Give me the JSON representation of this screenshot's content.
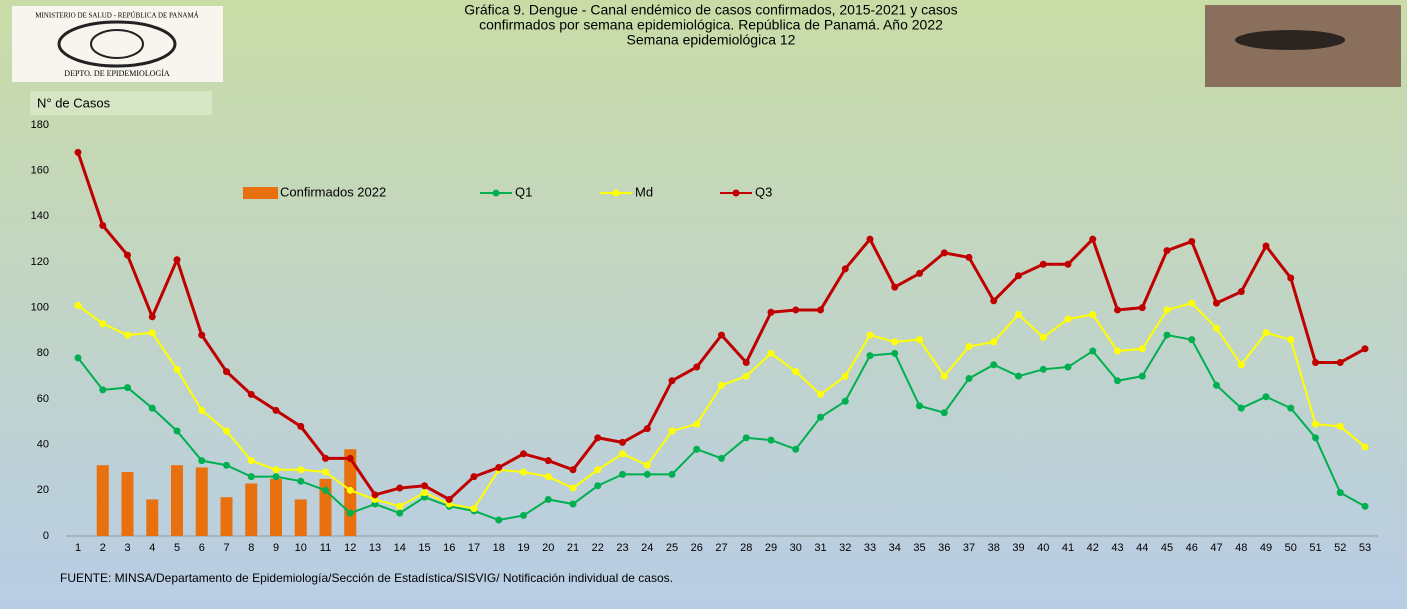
{
  "chart_data": {
    "type": "combo",
    "title_lines": [
      "Gráfica 9. Dengue - Canal endémico de casos confirmados, 2015-2021 y casos",
      "confirmados por semana epidemiológica. República de Panamá. Año 2022",
      "Semana epidemiológica 12"
    ],
    "logo_texts": [
      "MINISTERIO DE SALUD - REPÚBLICA DE PANAMÁ",
      "DEPTO. DE EPIDEMIOLOGÍA"
    ],
    "y_label": "N° de Casos",
    "source": "FUENTE: MINSA/Departamento de Epidemiología/Sección de Estadística/SISVIG/ Notificación individual de casos.",
    "categories": [
      1,
      2,
      3,
      4,
      5,
      6,
      7,
      8,
      9,
      10,
      11,
      12,
      13,
      14,
      15,
      16,
      17,
      18,
      19,
      20,
      21,
      22,
      23,
      24,
      25,
      26,
      27,
      28,
      29,
      30,
      31,
      32,
      33,
      34,
      35,
      36,
      37,
      38,
      39,
      40,
      41,
      42,
      43,
      44,
      45,
      46,
      47,
      48,
      49,
      50,
      51,
      52,
      53
    ],
    "ylim": [
      0,
      180
    ],
    "yticks": [
      0,
      20,
      40,
      60,
      80,
      100,
      120,
      140,
      160,
      180
    ],
    "series": [
      {
        "name": "Confirmados 2022",
        "type": "bar",
        "color": "#e8700f",
        "values": [
          null,
          31,
          28,
          16,
          31,
          30,
          17,
          23,
          25,
          16,
          25,
          38,
          null,
          null,
          null,
          null,
          null,
          null,
          null,
          null,
          null,
          null,
          null,
          null,
          null,
          null,
          null,
          null,
          null,
          null,
          null,
          null,
          null,
          null,
          null,
          null,
          null,
          null,
          null,
          null,
          null,
          null,
          null,
          null,
          null,
          null,
          null,
          null,
          null,
          null,
          null,
          null,
          null
        ]
      },
      {
        "name": "Q1",
        "type": "line",
        "color": "#00b050",
        "values": [
          78,
          64,
          65,
          56,
          46,
          33,
          31,
          26,
          26,
          24,
          20,
          10,
          14,
          10,
          17,
          13,
          11,
          7,
          9,
          16,
          14,
          22,
          27,
          27,
          27,
          38,
          34,
          43,
          42,
          38,
          52,
          59,
          79,
          80,
          57,
          54,
          69,
          75,
          70,
          73,
          74,
          81,
          68,
          70,
          88,
          86,
          66,
          56,
          61,
          56,
          43,
          19,
          13
        ]
      },
      {
        "name": "Md",
        "type": "line",
        "color": "#ffff00",
        "values": [
          101,
          93,
          88,
          89,
          73,
          55,
          46,
          33,
          29,
          29,
          28,
          20,
          16,
          13,
          19,
          14,
          12,
          29,
          28,
          26,
          21,
          29,
          36,
          31,
          46,
          49,
          66,
          70,
          80,
          72,
          62,
          70,
          88,
          85,
          86,
          70,
          83,
          85,
          97,
          87,
          95,
          97,
          81,
          82,
          99,
          102,
          91,
          75,
          89,
          86,
          49,
          48,
          39
        ]
      },
      {
        "name": "Q3",
        "type": "line",
        "color": "#c00000",
        "values": [
          168,
          136,
          123,
          96,
          121,
          88,
          72,
          62,
          55,
          48,
          34,
          34,
          18,
          21,
          22,
          16,
          26,
          30,
          36,
          33,
          29,
          43,
          41,
          47,
          68,
          74,
          88,
          76,
          98,
          99,
          99,
          117,
          130,
          109,
          115,
          124,
          122,
          103,
          114,
          119,
          119,
          130,
          99,
          100,
          125,
          129,
          102,
          107,
          127,
          113,
          76,
          76,
          82
        ]
      }
    ]
  }
}
